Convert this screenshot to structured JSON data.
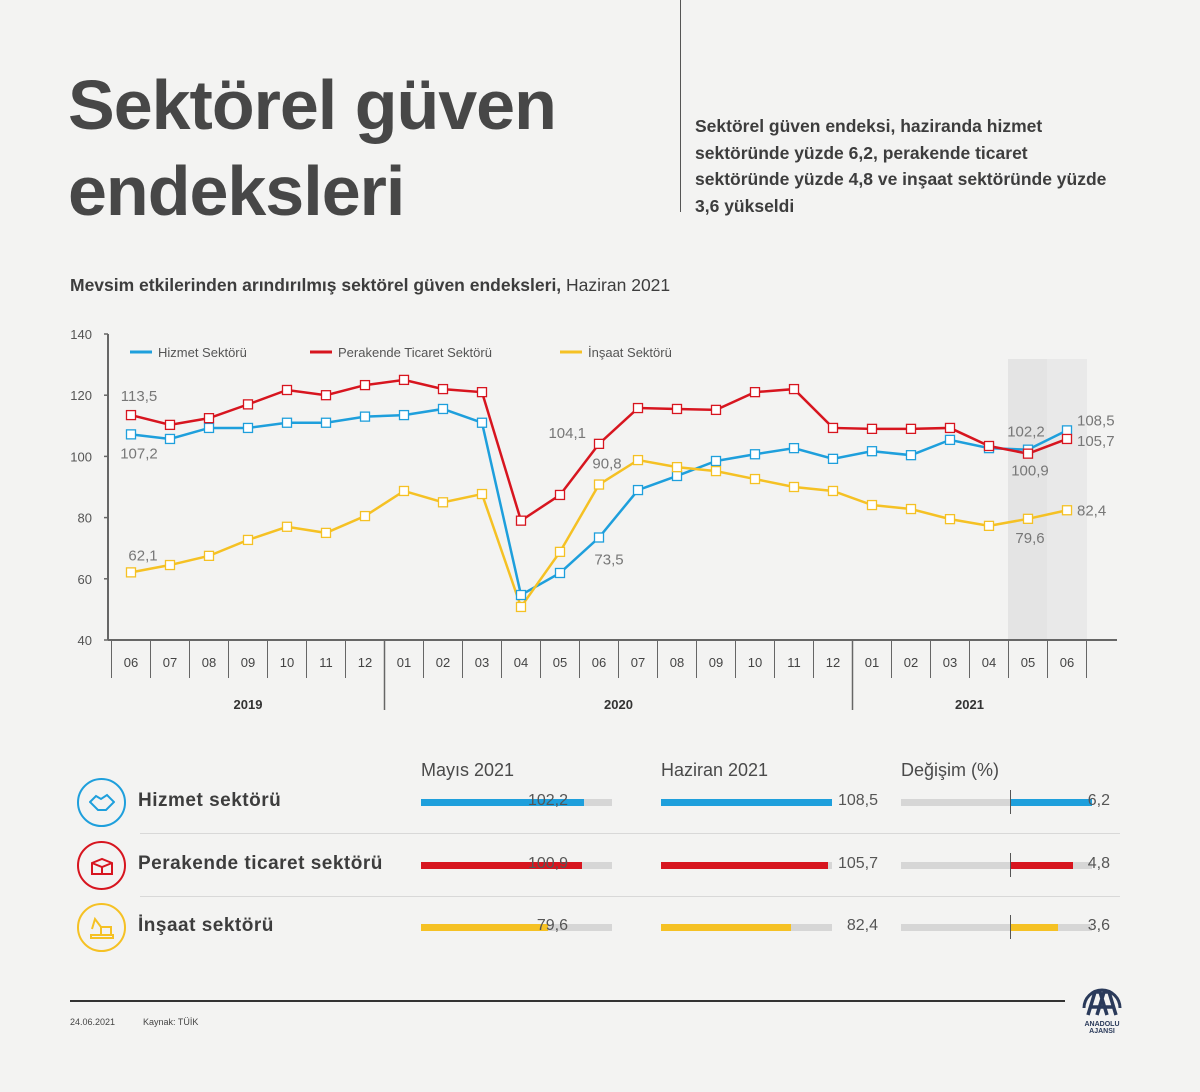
{
  "header": {
    "title_line1": "Sektörel güven",
    "title_line2": "endeksleri",
    "summary": "Sektörel güven endeksi, haziranda hizmet sektöründe yüzde 6,2, perakende ticaret sektöründe yüzde 4,8 ve inşaat sektöründe yüzde 3,6 yükseldi"
  },
  "chart_data": {
    "type": "line",
    "title_bold": "Mevsim etkilerinden arındırılmış sektörel güven endeksleri,",
    "title_regular": "Haziran 2021",
    "x": [
      "06",
      "07",
      "08",
      "09",
      "10",
      "11",
      "12",
      "01",
      "02",
      "03",
      "04",
      "05",
      "06",
      "07",
      "08",
      "09",
      "10",
      "11",
      "12",
      "01",
      "02",
      "03",
      "04",
      "05",
      "06"
    ],
    "year_groups": [
      {
        "label": "2019",
        "from": 0,
        "to": 6
      },
      {
        "label": "2020",
        "from": 7,
        "to": 18
      },
      {
        "label": "2021",
        "from": 19,
        "to": 24
      }
    ],
    "ylim": [
      40,
      140
    ],
    "yticks": [
      40,
      60,
      80,
      100,
      120,
      140
    ],
    "highlight_range": [
      "05/2021",
      "06/2021"
    ],
    "legend_position": "top-left",
    "series": [
      {
        "name": "Hizmet Sektörü",
        "color": "#1e9fdc",
        "values": [
          107.2,
          105.7,
          109.3,
          109.3,
          111,
          111,
          113,
          113.5,
          115.5,
          111,
          54.7,
          61.9,
          73.5,
          89,
          93.6,
          98.5,
          100.7,
          102.7,
          99.2,
          101.7,
          100.4,
          105.4,
          102.7,
          102.2,
          108.5
        ]
      },
      {
        "name": "Perakende Ticaret Sektörü",
        "color": "#d7151f",
        "values": [
          113.5,
          110.3,
          112.5,
          117,
          121.7,
          120,
          123.3,
          125,
          122,
          121,
          79,
          87.4,
          104.1,
          115.8,
          115.5,
          115.2,
          121,
          122,
          109.3,
          109,
          109,
          109.3,
          103.4,
          100.9,
          105.7
        ]
      },
      {
        "name": "İnşaat Sektörü",
        "color": "#f5c124",
        "values": [
          62.1,
          64.5,
          67.5,
          72.7,
          77,
          75,
          80.5,
          88.7,
          85,
          87.7,
          50.8,
          68.8,
          90.8,
          98.8,
          96.5,
          95.2,
          92.6,
          90,
          88.7,
          84.1,
          82.8,
          79.5,
          77.3,
          79.6,
          82.4
        ]
      }
    ],
    "annotations": [
      {
        "series": 1,
        "index": 0,
        "text": "113,5"
      },
      {
        "series": 0,
        "index": 0,
        "text": "107,2"
      },
      {
        "series": 2,
        "index": 0,
        "text": "62,1"
      },
      {
        "series": 1,
        "index": 12,
        "text": "104,1"
      },
      {
        "series": 2,
        "index": 12,
        "text": "90,8"
      },
      {
        "series": 0,
        "index": 12,
        "text": "73,5"
      },
      {
        "series": 0,
        "index": 23,
        "text": "102,2"
      },
      {
        "series": 1,
        "index": 23,
        "text": "100,9"
      },
      {
        "series": 2,
        "index": 23,
        "text": "79,6"
      },
      {
        "series": 0,
        "index": 24,
        "text": "108,5"
      },
      {
        "series": 1,
        "index": 24,
        "text": "105,7"
      },
      {
        "series": 2,
        "index": 24,
        "text": "82,4"
      }
    ]
  },
  "table": {
    "columns": [
      "Mayıs 2021",
      "Haziran 2021",
      "Değişim (%)"
    ],
    "rows": [
      {
        "label": "Hizmet sektörü",
        "icon": "handshake-icon",
        "color": "#1e9fdc",
        "mayis": 102.2,
        "mayis_text": "102,2",
        "haziran": 108.5,
        "haziran_text": "108,5",
        "change": 6.2,
        "change_text": "6,2"
      },
      {
        "label": "Perakende ticaret sektörü",
        "icon": "open-box-icon",
        "color": "#d7151f",
        "mayis": 100.9,
        "mayis_text": "100,9",
        "haziran": 105.7,
        "haziran_text": "105,7",
        "change": 4.8,
        "change_text": "4,8"
      },
      {
        "label": "İnşaat sektörü",
        "icon": "excavator-icon",
        "color": "#f5c124",
        "mayis": 79.6,
        "mayis_text": "79,6",
        "haziran": 82.4,
        "haziran_text": "82,4",
        "change": 3.6,
        "change_text": "3,6"
      }
    ]
  },
  "footer": {
    "date": "24.06.2021",
    "source": "Kaynak: TÜİK",
    "logo_text": "ANADOLU AJANSI"
  }
}
